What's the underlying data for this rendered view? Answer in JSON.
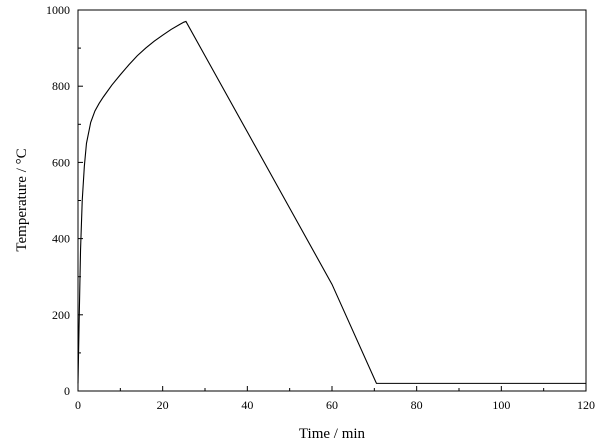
{
  "chart_data": {
    "type": "line",
    "title": "",
    "xlabel": "Time / min",
    "ylabel": "Temperature / °C",
    "xlim": [
      0,
      120
    ],
    "ylim": [
      0,
      1000
    ],
    "xticks": [
      0,
      20,
      40,
      60,
      80,
      100,
      120
    ],
    "yticks": [
      0,
      200,
      400,
      600,
      800,
      1000
    ],
    "grid": false,
    "legend": "none",
    "colors": {
      "line": "#000000",
      "axes": "#000000"
    },
    "series": [
      {
        "x": [
          0,
          0.3,
          0.6,
          1,
          1.5,
          2,
          3,
          4,
          5,
          6,
          8,
          10,
          12,
          14,
          16,
          18,
          20,
          22,
          24,
          25,
          25.5,
          30,
          40,
          50,
          60,
          70.5,
          71,
          80,
          100,
          120
        ],
        "y": [
          20,
          200,
          370,
          500,
          590,
          650,
          705,
          735,
          755,
          772,
          803,
          830,
          856,
          880,
          900,
          918,
          934,
          949,
          962,
          968,
          970,
          880,
          680,
          480,
          280,
          20,
          20,
          20,
          20,
          20
        ]
      }
    ]
  }
}
